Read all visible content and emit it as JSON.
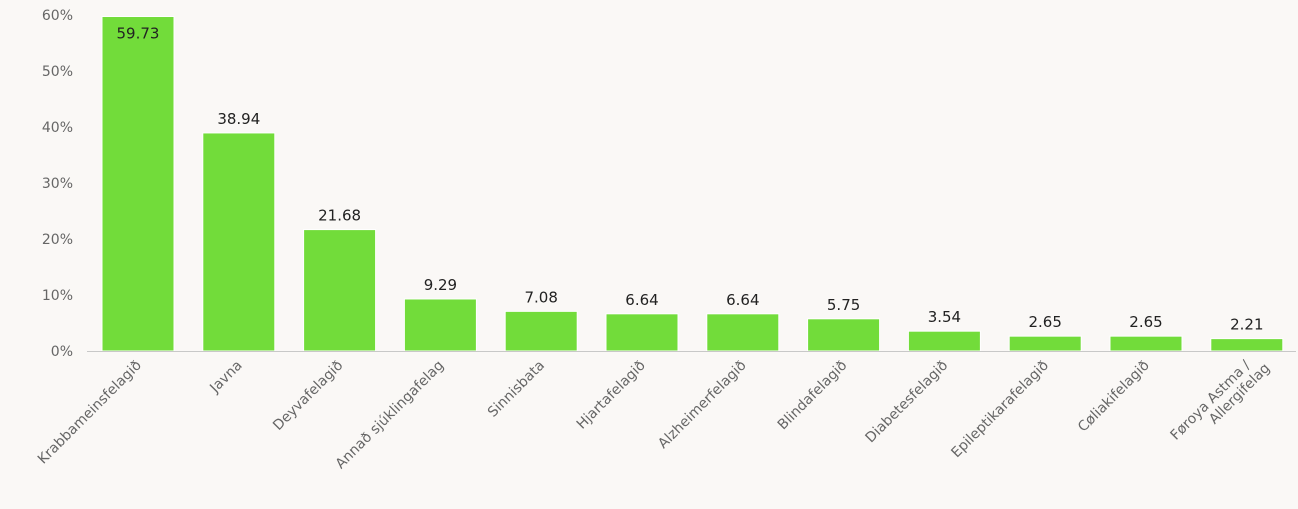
{
  "chart_data": {
    "type": "bar",
    "categories": [
      "Krabbameinsfelagið",
      "Javna",
      "Deyvafelagið",
      "Annað sjúklingafelag",
      "Sinnisbata",
      "Hjartafelagið",
      "Alzheimerfelagið",
      "Blindafelagið",
      "Diabetesfelagið",
      "Epileptikarafelagið",
      "Cøliakifelagið",
      "Føroya Astma / Allergifelag"
    ],
    "values": [
      59.73,
      38.94,
      21.68,
      9.29,
      7.08,
      6.64,
      6.64,
      5.75,
      3.54,
      2.65,
      2.65,
      2.21
    ],
    "value_labels": [
      "59.73",
      "38.94",
      "21.68",
      "9.29",
      "7.08",
      "6.64",
      "6.64",
      "5.75",
      "3.54",
      "2.65",
      "2.65",
      "2.21"
    ],
    "y_ticks": [
      "0%",
      "10%",
      "20%",
      "30%",
      "40%",
      "50%",
      "60%"
    ],
    "y_tick_values": [
      0,
      10,
      20,
      30,
      40,
      50,
      60
    ],
    "ylim": [
      0,
      60
    ],
    "grid": false,
    "legend": "none",
    "colors": {
      "bar": "#72dc3a",
      "bar_edge": "#ffffff",
      "axis": "#c8c8c8",
      "tick_text": "#666666",
      "value_text": "#222222",
      "background": "#faf8f6"
    }
  }
}
